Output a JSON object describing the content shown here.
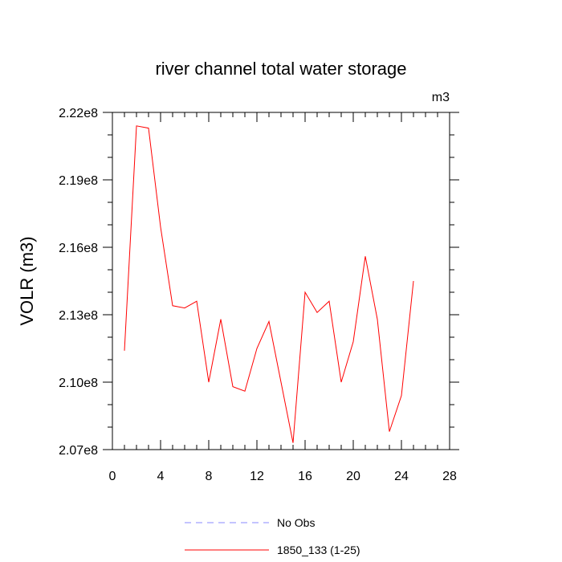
{
  "chart_data": {
    "type": "line",
    "title": "river channel total water storage",
    "ylabel": "VOLR  (m3)",
    "units_label": "m3",
    "xlim": [
      0,
      28
    ],
    "ylim": [
      207000000,
      222000000
    ],
    "x_ticks": [
      0,
      4,
      8,
      12,
      16,
      20,
      24,
      28
    ],
    "x_tick_labels": [
      "0",
      "4",
      "8",
      "12",
      "16",
      "20",
      "24",
      "28"
    ],
    "y_ticks": [
      207000000,
      210000000,
      213000000,
      216000000,
      219000000,
      222000000
    ],
    "y_tick_labels": [
      "2.07e8",
      "2.10e8",
      "2.13e8",
      "2.16e8",
      "2.19e8",
      "2.22e8"
    ],
    "grid": false,
    "legend_position": "bottom",
    "series": [
      {
        "name": "No Obs",
        "color": "#8888ff",
        "style": "dashed",
        "x": [],
        "y": []
      },
      {
        "name": "1850_133 (1-25)",
        "color": "#ff0000",
        "style": "solid",
        "x": [
          1,
          2,
          3,
          4,
          5,
          6,
          7,
          8,
          9,
          10,
          11,
          12,
          13,
          14,
          15,
          16,
          17,
          18,
          19,
          20,
          21,
          22,
          23,
          24,
          25
        ],
        "y": [
          211400000,
          221400000,
          221300000,
          216900000,
          213400000,
          213300000,
          213600000,
          210000000,
          212800000,
          209800000,
          209600000,
          211500000,
          212700000,
          210000000,
          207300000,
          214000000,
          213100000,
          213600000,
          210000000,
          211800000,
          215600000,
          212800000,
          207800000,
          209400000,
          214500000
        ]
      }
    ]
  }
}
